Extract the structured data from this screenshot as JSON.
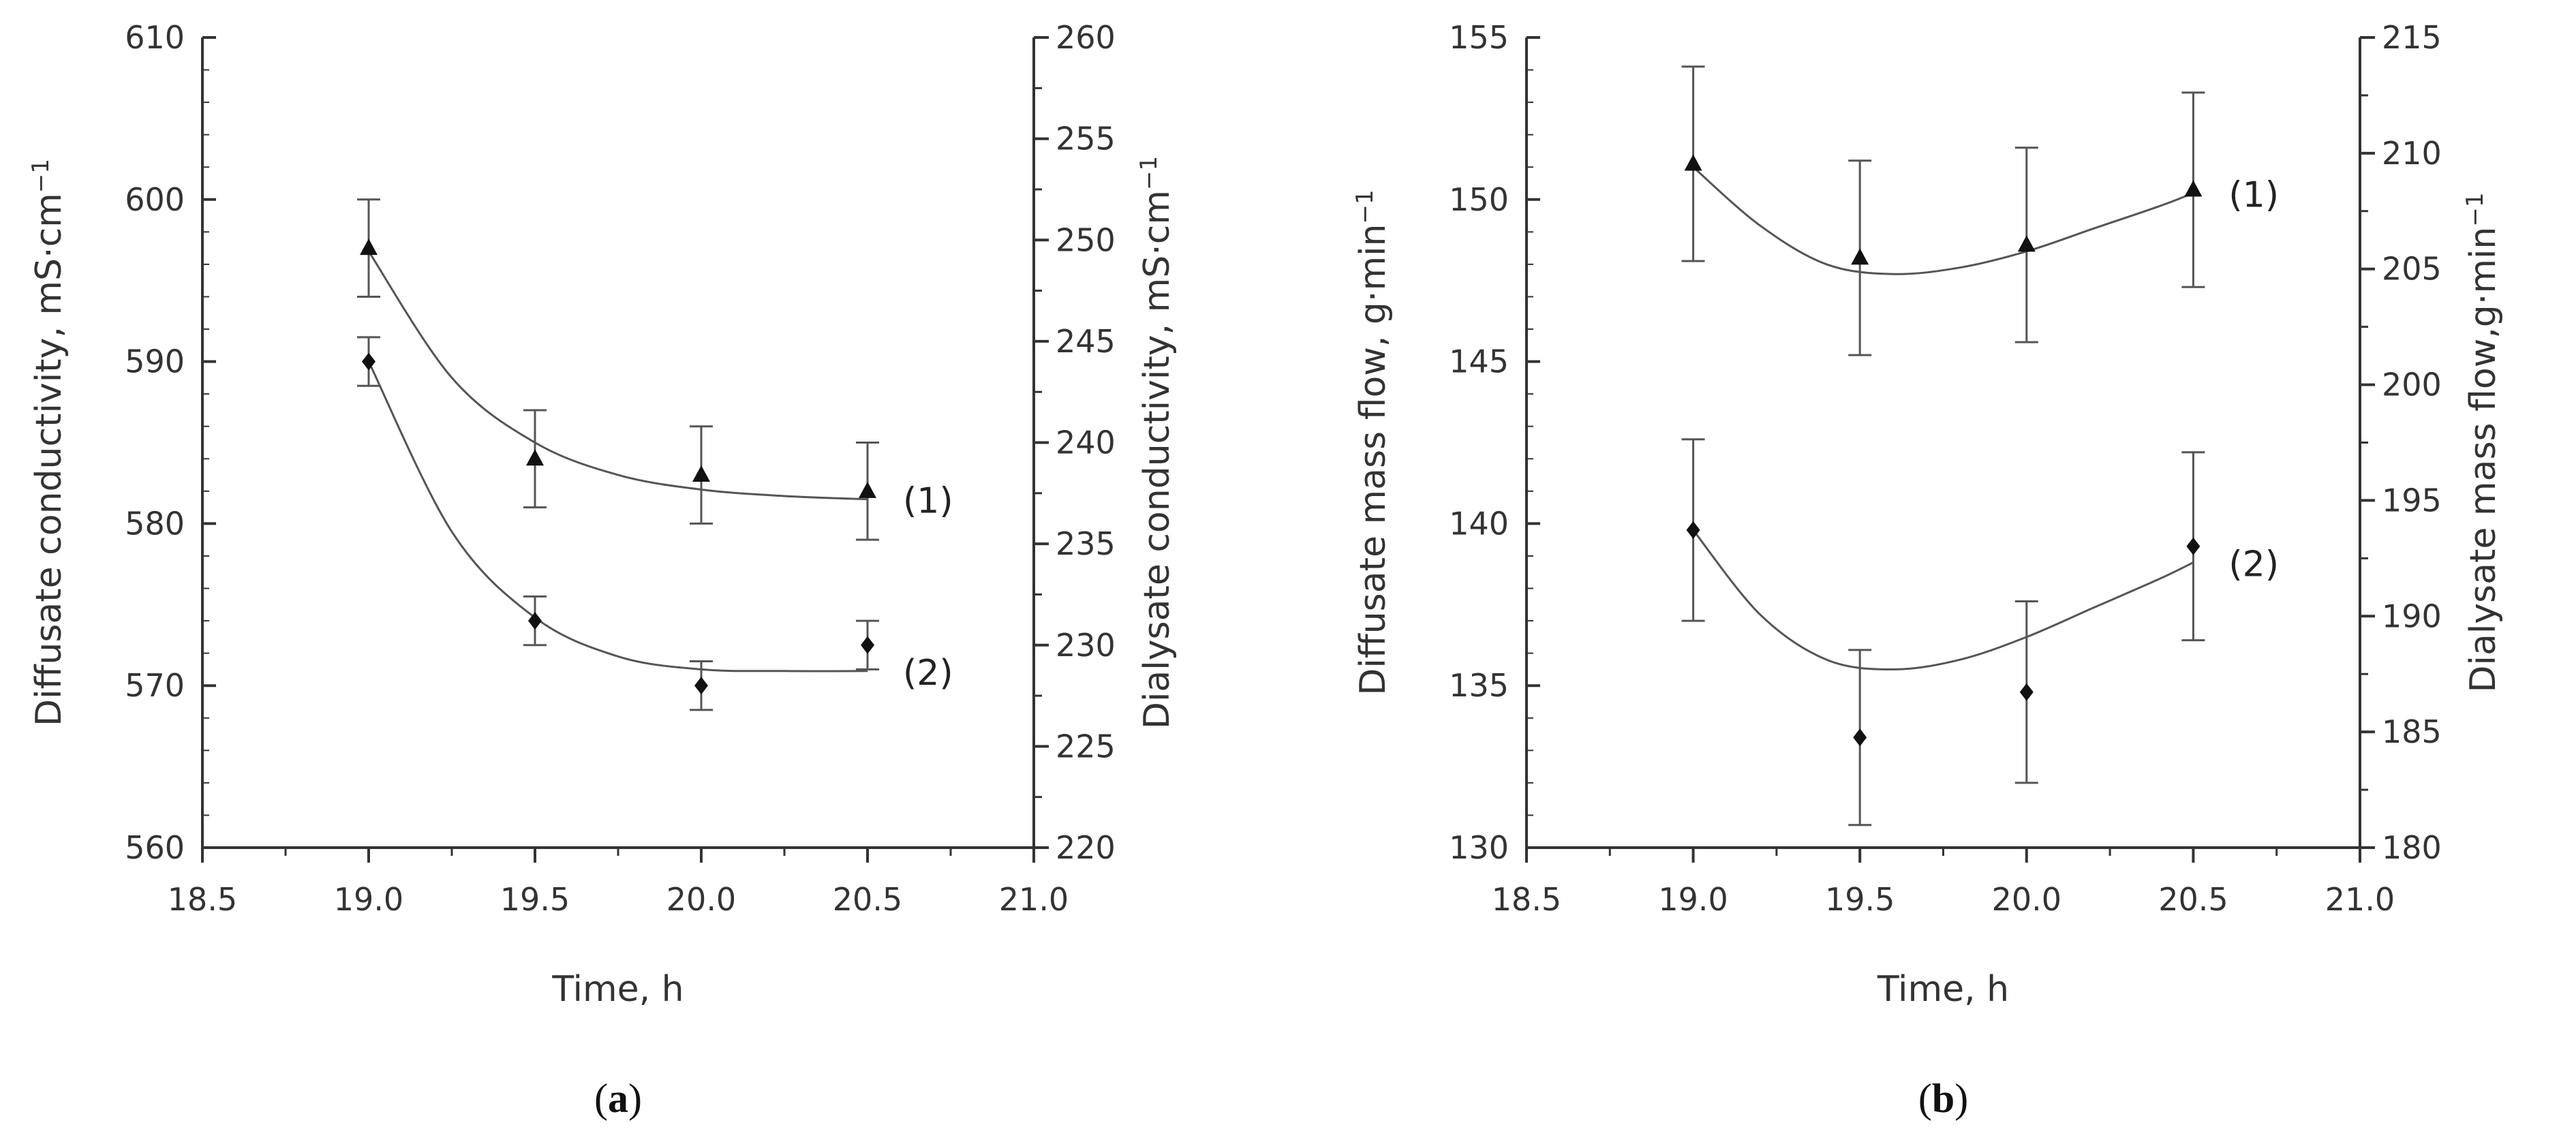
{
  "chart_data": [
    {
      "type": "scatter",
      "panel_label": "a",
      "xlabel": "Time, h",
      "ylabel_left": "Diffusate conductivity, mS·cm",
      "ylabel_right": "Dialysate conductivity, mS·cm",
      "unit_superscript": "−1",
      "xlim": [
        18.5,
        21.0
      ],
      "ylim_left": [
        560,
        610
      ],
      "ylim_right": [
        220,
        260
      ],
      "xticks": [
        "18.5",
        "19.0",
        "19.5",
        "20.0",
        "20.5",
        "21.0"
      ],
      "yticks_left": [
        "560",
        "570",
        "580",
        "590",
        "600",
        "610"
      ],
      "yticks_right": [
        "220",
        "225",
        "230",
        "235",
        "240",
        "245",
        "250",
        "255",
        "260"
      ],
      "grid": false,
      "series": [
        {
          "name": "(1)",
          "marker": "triangle",
          "x": [
            19.0,
            19.5,
            20.0,
            20.5
          ],
          "y": [
            597,
            584,
            583,
            582
          ],
          "err": [
            3,
            3,
            3,
            3
          ],
          "fit_x": [
            19.0,
            19.25,
            19.5,
            19.75,
            20.0,
            20.25,
            20.5
          ],
          "fit_y": [
            596.8,
            589.0,
            585.0,
            583.0,
            582.1,
            581.7,
            581.5
          ]
        },
        {
          "name": "(2)",
          "marker": "diamond",
          "x": [
            19.0,
            19.5,
            20.0,
            20.5
          ],
          "y": [
            590,
            574,
            570,
            572.5
          ],
          "err": [
            1.5,
            1.5,
            1.5,
            1.5
          ],
          "fit_x": [
            19.0,
            19.25,
            19.5,
            19.75,
            20.0,
            20.25,
            20.5
          ],
          "fit_y": [
            590.0,
            579.5,
            574.2,
            571.8,
            571.0,
            570.9,
            570.9
          ]
        }
      ]
    },
    {
      "type": "scatter",
      "panel_label": "b",
      "xlabel": "Time, h",
      "ylabel_left": "Diffusate mass flow, g·min",
      "ylabel_right": "Dialysate mass flow,g·min",
      "unit_superscript": "−1",
      "xlim": [
        18.5,
        21.0
      ],
      "ylim_left": [
        130,
        155
      ],
      "ylim_right": [
        180,
        215
      ],
      "xticks": [
        "18.5",
        "19.0",
        "19.5",
        "20.0",
        "20.5",
        "21.0"
      ],
      "yticks_left": [
        "130",
        "135",
        "140",
        "145",
        "150",
        "155"
      ],
      "yticks_right": [
        "180",
        "185",
        "190",
        "195",
        "200",
        "205",
        "210",
        "215"
      ],
      "grid": false,
      "series": [
        {
          "name": "(1)",
          "marker": "triangle",
          "x": [
            19.0,
            19.5,
            20.0,
            20.5
          ],
          "y": [
            151.1,
            148.2,
            148.6,
            150.3
          ],
          "err": [
            3,
            3,
            3,
            3
          ],
          "fit_x": [
            19.0,
            19.2,
            19.4,
            19.6,
            19.8,
            20.0,
            20.2,
            20.4,
            20.5
          ],
          "fit_y": [
            151.0,
            149.2,
            148.0,
            147.7,
            147.9,
            148.4,
            149.1,
            149.8,
            150.2
          ]
        },
        {
          "name": "(2)",
          "marker": "diamond",
          "x": [
            19.0,
            19.5,
            20.0,
            20.5
          ],
          "y": [
            139.8,
            133.4,
            134.8,
            139.3
          ],
          "err": [
            2.8,
            2.7,
            2.8,
            2.9
          ],
          "fit_x": [
            19.0,
            19.2,
            19.4,
            19.6,
            19.8,
            20.0,
            20.2,
            20.4,
            20.5
          ],
          "fit_y": [
            139.8,
            137.2,
            135.8,
            135.5,
            135.8,
            136.5,
            137.4,
            138.3,
            138.8
          ]
        }
      ]
    }
  ]
}
